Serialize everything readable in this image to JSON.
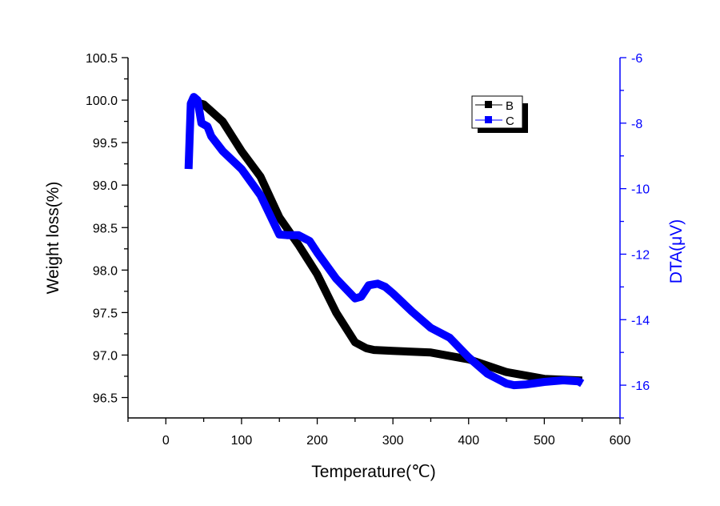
{
  "chart_data": {
    "type": "line",
    "title": "",
    "xlabel": "Temperature(℃)",
    "ylabel": "Weight loss(%)",
    "y2label": "DTA(μV)",
    "xlim": [
      -50,
      600
    ],
    "ylim": [
      96.26,
      100.5
    ],
    "y2lim": [
      -17,
      -6
    ],
    "xticks": [
      0,
      100,
      200,
      300,
      400,
      500,
      600
    ],
    "xtick_labels": [
      "0",
      "100",
      "200",
      "300",
      "400",
      "500",
      "600"
    ],
    "yticks": [
      96.5,
      97.0,
      97.5,
      98.0,
      98.5,
      99.0,
      99.5,
      100.0,
      100.5
    ],
    "ytick_labels": [
      "96.5",
      "97.0",
      "97.5",
      "98.0",
      "98.5",
      "99.0",
      "99.5",
      "100.0",
      "100.5"
    ],
    "y2ticks": [
      -16,
      -14,
      -12,
      -10,
      -8,
      -6
    ],
    "y2tick_labels": [
      "-16",
      "-14",
      "-12",
      "-10",
      "-8",
      "-6"
    ],
    "grid": false,
    "legend": {
      "placement": "top-right",
      "entries": [
        "B",
        "C"
      ]
    },
    "colors": {
      "B": "#000000",
      "C": "#0000ff",
      "axis2": "#0000ff"
    },
    "series": [
      {
        "name": "B",
        "axis": "left",
        "x": [
          30,
          50,
          75,
          100,
          125,
          150,
          175,
          200,
          225,
          250,
          265,
          275,
          300,
          350,
          400,
          450,
          500,
          550
        ],
        "y": [
          100.0,
          99.95,
          99.75,
          99.4,
          99.1,
          98.62,
          98.3,
          97.95,
          97.5,
          97.15,
          97.08,
          97.06,
          97.05,
          97.03,
          96.95,
          96.8,
          96.72,
          96.7
        ]
      },
      {
        "name": "C",
        "axis": "right",
        "x": [
          30,
          33,
          37,
          42,
          47,
          55,
          60,
          75,
          100,
          125,
          150,
          160,
          175,
          190,
          200,
          225,
          250,
          258,
          268,
          280,
          290,
          300,
          325,
          350,
          375,
          400,
          425,
          450,
          460,
          475,
          500,
          525,
          545,
          550
        ],
        "y": [
          -9.4,
          -7.4,
          -7.2,
          -7.3,
          -8.0,
          -8.1,
          -8.4,
          -8.85,
          -9.4,
          -10.2,
          -11.4,
          -11.42,
          -11.42,
          -11.6,
          -11.95,
          -12.75,
          -13.35,
          -13.3,
          -12.95,
          -12.9,
          -13.0,
          -13.2,
          -13.75,
          -14.25,
          -14.55,
          -15.15,
          -15.65,
          -15.95,
          -16.0,
          -15.98,
          -15.9,
          -15.85,
          -15.88,
          -15.95
        ]
      }
    ]
  }
}
